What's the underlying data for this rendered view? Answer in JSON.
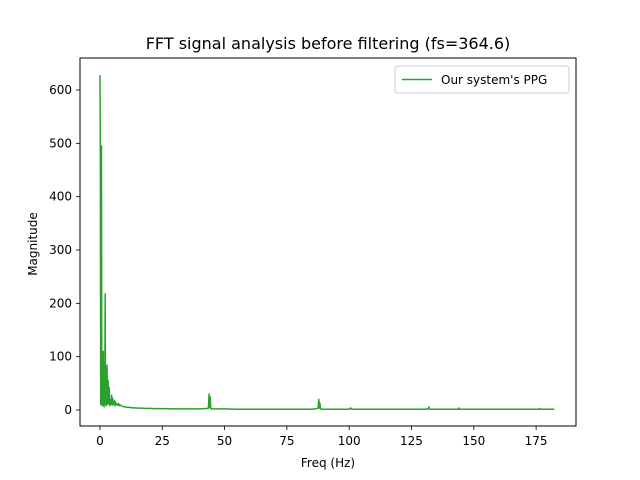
{
  "chart_data": {
    "type": "line",
    "title": "FFT signal analysis before filtering (fs=364.6)",
    "xlabel": "Freq (Hz)",
    "ylabel": "Magnitude",
    "xlim": [
      -8,
      191
    ],
    "ylim": [
      -30,
      660
    ],
    "xticks": [
      0,
      25,
      50,
      75,
      100,
      125,
      150,
      175
    ],
    "yticks": [
      0,
      100,
      200,
      300,
      400,
      500,
      600
    ],
    "grid": false,
    "legend": {
      "placement": "top-right",
      "entries": [
        "Our system's PPG"
      ]
    },
    "series": [
      {
        "name": "Our system's PPG",
        "color": "#2ca02c",
        "x": [
          0,
          0.15,
          0.3,
          0.45,
          0.6,
          0.75,
          0.9,
          1.05,
          1.2,
          1.35,
          1.5,
          1.65,
          1.8,
          1.95,
          2.1,
          2.25,
          2.4,
          2.55,
          2.7,
          2.85,
          3.0,
          3.15,
          3.3,
          3.45,
          3.6,
          3.75,
          3.9,
          4.05,
          4.2,
          4.35,
          4.5,
          4.7,
          4.9,
          5.1,
          5.3,
          5.5,
          5.7,
          5.9,
          6.1,
          6.3,
          6.5,
          6.8,
          7.1,
          7.4,
          7.7,
          8.0,
          8.5,
          9.0,
          9.5,
          10.0,
          11.0,
          12.0,
          13.0,
          14.0,
          15.0,
          16.5,
          18.0,
          20.0,
          22.0,
          25.0,
          30.0,
          35.0,
          40.0,
          43.5,
          43.8,
          44.0,
          44.2,
          44.5,
          45.0,
          50.0,
          55.0,
          60.0,
          65.0,
          70.0,
          75.0,
          80.0,
          85.0,
          87.5,
          87.8,
          88.0,
          88.2,
          88.5,
          89.0,
          95.0,
          100.0,
          100.5,
          101.0,
          105.0,
          110.0,
          115.0,
          120.0,
          125.0,
          130.0,
          131.8,
          132.0,
          132.2,
          132.6,
          135.0,
          140.0,
          143.8,
          144.0,
          144.3,
          145.0,
          150.0,
          155.0,
          160.0,
          165.0,
          170.0,
          175.0,
          176.0,
          176.3,
          176.6,
          178.0,
          180.0,
          182.3
        ],
        "values": [
          628,
          520,
          10,
          130,
          495,
          60,
          8,
          50,
          20,
          110,
          10,
          6,
          35,
          12,
          218,
          15,
          8,
          28,
          40,
          84,
          10,
          25,
          55,
          18,
          12,
          42,
          8,
          20,
          10,
          18,
          12,
          28,
          9,
          22,
          10,
          15,
          12,
          18,
          8,
          14,
          12,
          10,
          9,
          12,
          8,
          10,
          8,
          7,
          6,
          6,
          5,
          5,
          4,
          4,
          3.5,
          3.5,
          3,
          3,
          2.5,
          2.5,
          2,
          2,
          2,
          3,
          30,
          5,
          25,
          2,
          2,
          2,
          1.5,
          1.5,
          1.5,
          1.5,
          1.5,
          1.5,
          1.5,
          3,
          20,
          4,
          14,
          2,
          1.5,
          1.5,
          1.5,
          4,
          1.5,
          1.5,
          1.5,
          1.5,
          1.5,
          1.5,
          1.5,
          2,
          6,
          2,
          1.5,
          1.5,
          1.5,
          1.5,
          4,
          1.5,
          1.5,
          1.5,
          1.5,
          1.5,
          1.5,
          1.5,
          1.5,
          1.5,
          3,
          1.5,
          1.5,
          1.5,
          1.5
        ]
      }
    ]
  }
}
